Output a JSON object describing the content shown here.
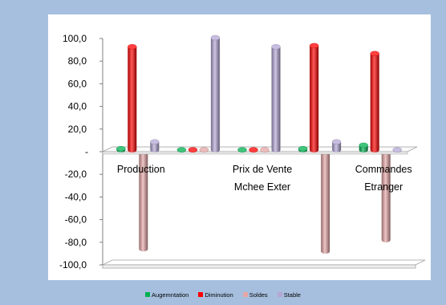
{
  "chart_data": {
    "type": "bar",
    "style": "3d-cylinder",
    "title": "",
    "xlabel": "",
    "ylabel": "",
    "ylim": [
      -100,
      100
    ],
    "ytick_step": 20,
    "yticks": [
      "100,0",
      "80,0",
      "60,0",
      "40,0",
      "20,0",
      "-",
      "-20,0",
      "-40,0",
      "-60,0",
      "-80,0",
      "-100,0"
    ],
    "categories": [
      "Production",
      "",
      "Prix de Vente Mchee Exter",
      "",
      "Commandes Etranger"
    ],
    "category_lines": [
      [
        "Production"
      ],
      [],
      [
        "Prix de Vente",
        "Mchee Exter"
      ],
      [],
      [
        "Commandes",
        "Etranger"
      ]
    ],
    "series": [
      {
        "name": "Augemntation",
        "color": "#00b050",
        "values": [
          2,
          1,
          1,
          2,
          5
        ]
      },
      {
        "name": "Diminution",
        "color": "#ff0000",
        "values": [
          92,
          1,
          1,
          93,
          86
        ]
      },
      {
        "name": "Soldes",
        "color": "#e6a6a6",
        "values": [
          -86,
          1,
          1,
          -88,
          -78
        ]
      },
      {
        "name": "Stable",
        "color": "#b4a7d6",
        "values": [
          8,
          100,
          92,
          8,
          1
        ]
      }
    ],
    "legend": {
      "position": "bottom"
    },
    "grid": false
  }
}
